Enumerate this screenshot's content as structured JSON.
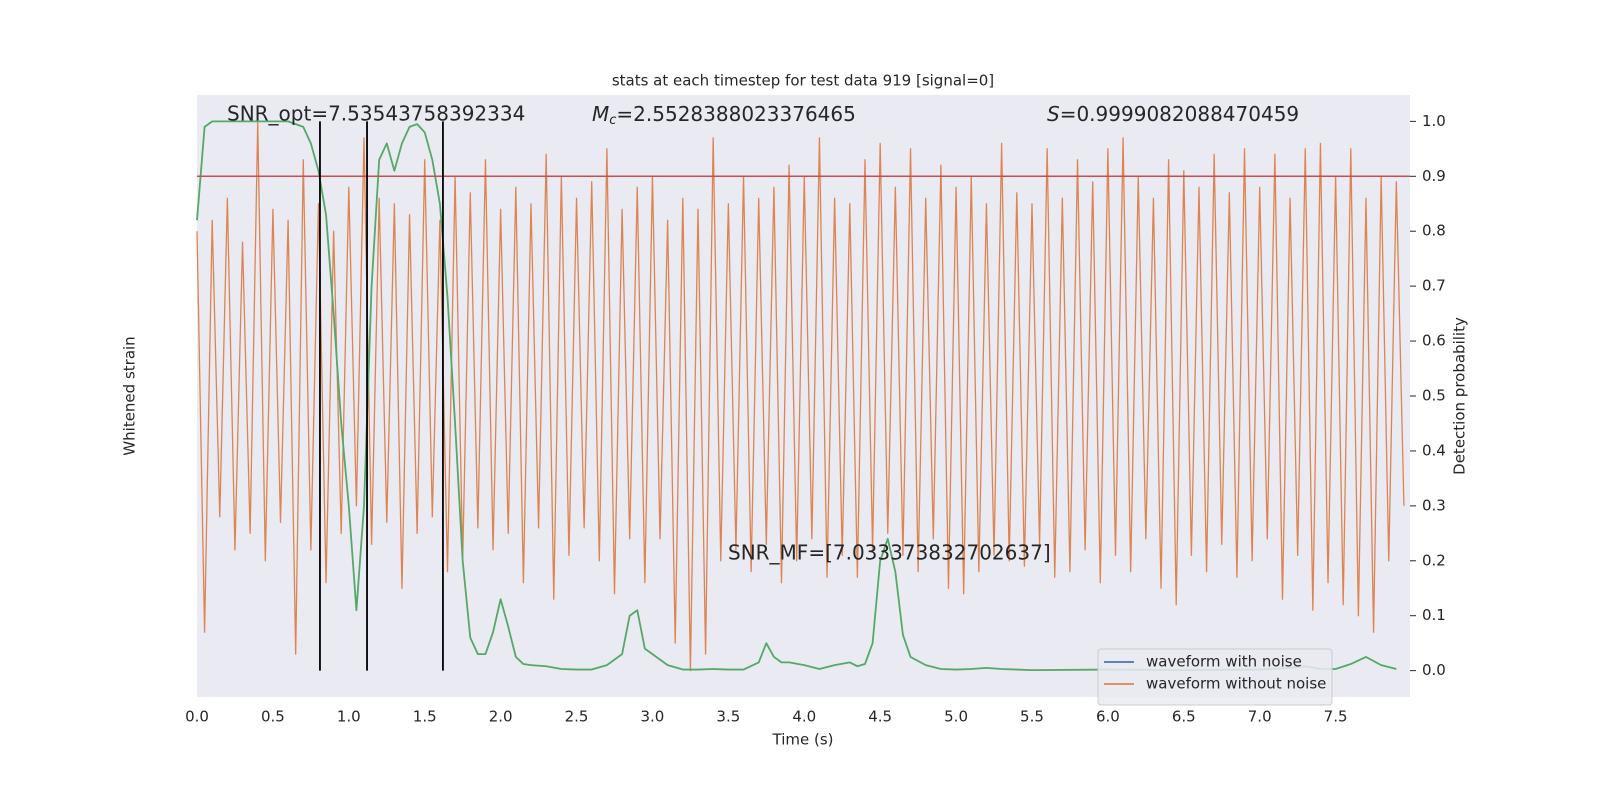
{
  "chart_data": {
    "type": "line",
    "title": "stats at each timestep for test data 919 [signal=0]",
    "xlabel": "Time (s)",
    "ylabel": "Whitened strain",
    "y2label": "Detection probability",
    "annotations": [
      {
        "text": "SNR_opt=7.53543758392334"
      },
      {
        "symbol": "M",
        "subscript": "c",
        "text": "=2.5528388023376465"
      },
      {
        "symbol": "S",
        "text": "=0.9999082088470459"
      },
      {
        "text": "SNR_MF=[7.033373832702637]"
      }
    ],
    "xlim": [
      0,
      7.99
    ],
    "ylim": [
      -0.048,
      1.048
    ],
    "y2lim": [
      -0.048,
      1.048
    ],
    "xticks": [
      {
        "value": 0,
        "label": "0.0"
      },
      {
        "value": 0.5,
        "label": "0.5"
      },
      {
        "value": 1,
        "label": "1.0"
      },
      {
        "value": 1.5,
        "label": "1.5"
      },
      {
        "value": 2,
        "label": "2.0"
      },
      {
        "value": 2.5,
        "label": "2.5"
      },
      {
        "value": 3,
        "label": "3.0"
      },
      {
        "value": 3.5,
        "label": "3.5"
      },
      {
        "value": 4,
        "label": "4.0"
      },
      {
        "value": 4.5,
        "label": "4.5"
      },
      {
        "value": 5,
        "label": "5.0"
      },
      {
        "value": 5.5,
        "label": "5.5"
      },
      {
        "value": 6,
        "label": "6.0"
      },
      {
        "value": 6.5,
        "label": "6.5"
      },
      {
        "value": 7,
        "label": "7.0"
      },
      {
        "value": 7.5,
        "label": "7.5"
      }
    ],
    "y2ticks": [
      {
        "value": 0,
        "label": "0.0"
      },
      {
        "value": 0.1,
        "label": "0.1"
      },
      {
        "value": 0.2,
        "label": "0.2"
      },
      {
        "value": 0.3,
        "label": "0.3"
      },
      {
        "value": 0.4,
        "label": "0.4"
      },
      {
        "value": 0.5,
        "label": "0.5"
      },
      {
        "value": 0.6,
        "label": "0.6"
      },
      {
        "value": 0.7,
        "label": "0.7"
      },
      {
        "value": 0.8,
        "label": "0.8"
      },
      {
        "value": 0.9,
        "label": "0.9"
      },
      {
        "value": 1,
        "label": "1.0"
      }
    ],
    "grid": true,
    "legend": "lower right",
    "hlines": [
      {
        "value": 0.9,
        "color": "#c44e52",
        "axis": "y2"
      }
    ],
    "vlines": {
      "x": [
        0.81,
        1.12,
        1.62
      ],
      "ymin": 0,
      "ymax": 1,
      "color": "#000000",
      "axis": "y2"
    },
    "series": [
      {
        "name": "waveform with noise",
        "color": "#4c72b0"
      },
      {
        "name": "waveform without noise",
        "color": "#dd8452",
        "axis": "y",
        "x": [
          0,
          0.05,
          0.1,
          0.15,
          0.2,
          0.25,
          0.3,
          0.35,
          0.4,
          0.45,
          0.5,
          0.55,
          0.6,
          0.65,
          0.7,
          0.75,
          0.8,
          0.85,
          0.9,
          0.95,
          1,
          1.05,
          1.1,
          1.15,
          1.2,
          1.25,
          1.3,
          1.35,
          1.4,
          1.45,
          1.5,
          1.55,
          1.6,
          1.65,
          1.7,
          1.75,
          1.8,
          1.85,
          1.9,
          1.95,
          2,
          2.05,
          2.1,
          2.15,
          2.2,
          2.25,
          2.3,
          2.35,
          2.4,
          2.45,
          2.5,
          2.55,
          2.6,
          2.65,
          2.7,
          2.75,
          2.8,
          2.85,
          2.9,
          2.95,
          3,
          3.05,
          3.1,
          3.15,
          3.2,
          3.25,
          3.3,
          3.35,
          3.4,
          3.45,
          3.5,
          3.55,
          3.6,
          3.65,
          3.7,
          3.75,
          3.8,
          3.85,
          3.9,
          3.95,
          4,
          4.05,
          4.1,
          4.15,
          4.2,
          4.25,
          4.3,
          4.35,
          4.4,
          4.45,
          4.5,
          4.55,
          4.6,
          4.65,
          4.7,
          4.75,
          4.8,
          4.85,
          4.9,
          4.95,
          5,
          5.05,
          5.1,
          5.15,
          5.2,
          5.25,
          5.3,
          5.35,
          5.4,
          5.45,
          5.5,
          5.55,
          5.6,
          5.65,
          5.7,
          5.75,
          5.8,
          5.85,
          5.9,
          5.95,
          6,
          6.05,
          6.1,
          6.15,
          6.2,
          6.25,
          6.3,
          6.35,
          6.4,
          6.45,
          6.5,
          6.55,
          6.6,
          6.65,
          6.7,
          6.75,
          6.8,
          6.85,
          6.9,
          6.95,
          7,
          7.05,
          7.1,
          7.15,
          7.2,
          7.25,
          7.3,
          7.35,
          7.4,
          7.45,
          7.5,
          7.55,
          7.6,
          7.65,
          7.7,
          7.75,
          7.8,
          7.85,
          7.9,
          7.95
        ],
        "values": [
          0.8,
          0.07,
          0.82,
          0.28,
          0.86,
          0.22,
          0.78,
          0.25,
          1.0,
          0.2,
          0.84,
          0.27,
          0.82,
          0.03,
          0.93,
          0.22,
          0.85,
          0.16,
          0.8,
          0.25,
          0.88,
          0.3,
          0.97,
          0.23,
          0.86,
          0.27,
          0.85,
          0.15,
          0.83,
          0.25,
          0.93,
          0.28,
          0.82,
          0.18,
          0.9,
          0.2,
          0.87,
          0.26,
          0.93,
          0.22,
          0.84,
          0.25,
          0.88,
          0.16,
          0.85,
          0.26,
          0.94,
          0.13,
          0.9,
          0.21,
          0.86,
          0.26,
          0.89,
          0.2,
          0.95,
          0.14,
          0.84,
          0.24,
          0.88,
          0.16,
          0.9,
          0.24,
          0.82,
          0.05,
          0.86,
          0.0,
          0.84,
          0.03,
          0.97,
          0.2,
          0.85,
          0.22,
          0.9,
          0.18,
          0.86,
          0.23,
          0.88,
          0.16,
          0.92,
          0.2,
          0.9,
          0.24,
          0.97,
          0.17,
          0.86,
          0.21,
          0.85,
          0.17,
          0.93,
          0.22,
          0.96,
          0.25,
          0.88,
          0.21,
          0.95,
          0.18,
          0.86,
          0.24,
          0.92,
          0.15,
          0.88,
          0.14,
          0.9,
          0.18,
          0.85,
          0.21,
          0.96,
          0.2,
          0.87,
          0.19,
          0.85,
          0.23,
          0.95,
          0.17,
          0.86,
          0.18,
          0.93,
          0.22,
          0.89,
          0.16,
          0.95,
          0.21,
          0.97,
          0.18,
          0.9,
          0.24,
          0.86,
          0.15,
          0.93,
          0.12,
          0.91,
          0.21,
          0.88,
          0.18,
          0.94,
          0.23,
          0.87,
          0.17,
          0.95,
          0.2,
          0.88,
          0.24,
          0.94,
          0.13,
          0.86,
          0.21,
          0.95,
          0.11,
          0.96,
          0.16,
          0.9,
          0.12,
          0.95,
          0.1,
          0.86,
          0.07,
          0.9,
          0.2,
          0.89,
          0.3
        ]
      },
      {
        "color": "#55a868",
        "axis": "y2",
        "x": [
          0,
          0.05,
          0.1,
          0.2,
          0.3,
          0.4,
          0.5,
          0.6,
          0.65,
          0.7,
          0.75,
          0.8,
          0.85,
          0.9,
          0.95,
          1,
          1.05,
          1.1,
          1.15,
          1.2,
          1.25,
          1.3,
          1.35,
          1.4,
          1.45,
          1.5,
          1.55,
          1.6,
          1.65,
          1.7,
          1.75,
          1.8,
          1.85,
          1.9,
          1.95,
          2,
          2.05,
          2.1,
          2.15,
          2.2,
          2.3,
          2.4,
          2.5,
          2.6,
          2.7,
          2.8,
          2.85,
          2.9,
          2.95,
          3,
          3.1,
          3.2,
          3.3,
          3.4,
          3.5,
          3.6,
          3.7,
          3.75,
          3.8,
          3.85,
          3.9,
          4,
          4.1,
          4.2,
          4.3,
          4.35,
          4.4,
          4.45,
          4.5,
          4.55,
          4.6,
          4.65,
          4.7,
          4.8,
          4.9,
          5,
          5.1,
          5.2,
          5.3,
          5.4,
          5.5,
          6,
          6.5,
          7,
          7.2,
          7.3,
          7.4,
          7.5,
          7.6,
          7.7,
          7.8,
          7.9
        ],
        "values": [
          0.82,
          0.99,
          1.0,
          1.0,
          1.0,
          1.0,
          1.0,
          1.0,
          0.995,
          0.99,
          0.96,
          0.91,
          0.83,
          0.65,
          0.45,
          0.3,
          0.11,
          0.3,
          0.7,
          0.93,
          0.96,
          0.91,
          0.96,
          0.99,
          0.995,
          0.98,
          0.93,
          0.85,
          0.68,
          0.45,
          0.2,
          0.06,
          0.03,
          0.03,
          0.07,
          0.13,
          0.08,
          0.025,
          0.012,
          0.01,
          0.008,
          0.003,
          0.002,
          0.002,
          0.01,
          0.03,
          0.1,
          0.11,
          0.04,
          0.03,
          0.01,
          0.002,
          0.002,
          0.003,
          0.002,
          0.002,
          0.015,
          0.05,
          0.025,
          0.015,
          0.015,
          0.01,
          0.003,
          0.01,
          0.015,
          0.008,
          0.012,
          0.05,
          0.2,
          0.24,
          0.18,
          0.065,
          0.025,
          0.01,
          0.003,
          0.002,
          0.003,
          0.005,
          0.003,
          0.002,
          0.001,
          0.002,
          0.001,
          0.002,
          0.005,
          0.008,
          0.003,
          0.003,
          0.012,
          0.025,
          0.01,
          0.003
        ]
      }
    ]
  }
}
